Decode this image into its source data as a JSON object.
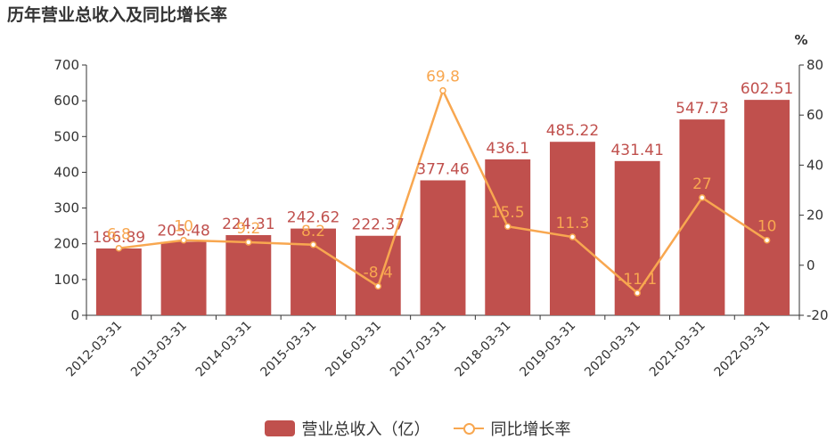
{
  "title": "历年营业总收入及同比增长率",
  "chart_data": {
    "type": "bar",
    "categories": [
      "2012-03-31",
      "2013-03-31",
      "2014-03-31",
      "2015-03-31",
      "2016-03-31",
      "2017-03-31",
      "2018-03-31",
      "2019-03-31",
      "2020-03-31",
      "2021-03-31",
      "2022-03-31"
    ],
    "series": [
      {
        "name": "营业总收入（亿）",
        "type": "bar",
        "axis": "left",
        "values": [
          186.89,
          205.48,
          224.31,
          242.62,
          222.37,
          377.46,
          436.1,
          485.22,
          431.41,
          547.73,
          602.51
        ],
        "labels": [
          "186.89",
          "205.48",
          "224.31",
          "242.62",
          "222.37",
          "377.46",
          "436.1",
          "485.22",
          "431.41",
          "547.73",
          "602.51"
        ],
        "color": "#c0504d"
      },
      {
        "name": "同比增长率",
        "type": "line",
        "axis": "right",
        "values": [
          6.8,
          10,
          9.2,
          8.2,
          -8.4,
          69.8,
          15.5,
          11.3,
          -11.1,
          27,
          10
        ],
        "labels": [
          "6.8",
          "10",
          "9.2",
          "8.2",
          "-8.4",
          "69.8",
          "15.5",
          "11.3",
          "-11.1",
          "27",
          "10"
        ],
        "color": "#f8a750"
      }
    ],
    "y_left": {
      "min": 0,
      "max": 700,
      "ticks": [
        "0",
        "100",
        "200",
        "300",
        "400",
        "500",
        "600",
        "700"
      ]
    },
    "y_right": {
      "min": -20,
      "max": 80,
      "unit": "%",
      "ticks": [
        "-20",
        "0",
        "20",
        "40",
        "60",
        "80"
      ]
    },
    "grid": false,
    "legend_position": "bottom"
  },
  "legend": {
    "bar_label": "营业总收入（亿）",
    "line_label": "同比增长率"
  }
}
